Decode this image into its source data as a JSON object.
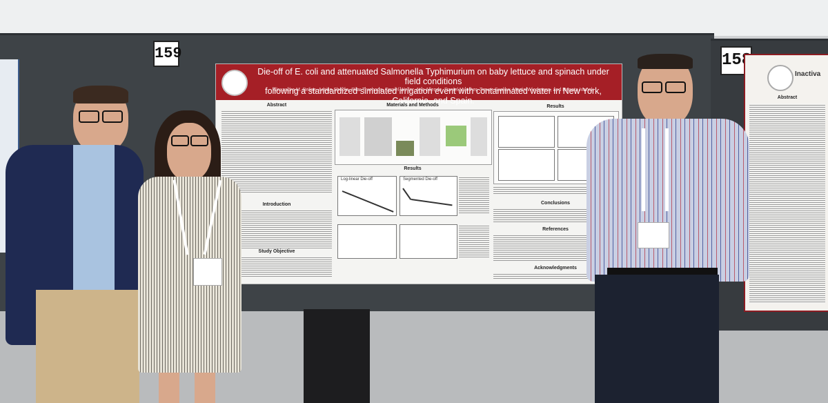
{
  "scene": {
    "board_left_number": "159",
    "board_right_number": "158"
  },
  "poster_main": {
    "title_line1": "Die-off of E. coli and attenuated Salmonella Typhimurium on baby lettuce and spinach under field conditions",
    "title_line2": "following a standardized simulated irrigation event with contaminated water in New York, California, and Spain.",
    "authors": "Alexandra M. Belias, Adrian Sbodio, Pilar Truchado, Daniel Weller, Ana Allende, Daniel Munther, Trevor Suslow, Martin Wiedmann, and Renata Ivanek",
    "sections": {
      "abstract": "Abstract",
      "materials_methods": "Materials and Methods",
      "results_top": "Results",
      "results_middle": "Results",
      "introduction": "Introduction",
      "study_objective": "Study Objective",
      "conclusions": "Conclusions",
      "references": "References",
      "acknowledgments": "Acknowledgments"
    },
    "plot_titles": {
      "log_linear": "Log-linear Die-off",
      "segmented": "Segmented Die-off"
    }
  },
  "poster_right": {
    "title": "Inactiva",
    "abstract_heading": "Abstract"
  },
  "people": [
    {
      "role": "man-left",
      "shirt": "#a9c3e0",
      "jacket": "#1f2a52"
    },
    {
      "role": "woman-center",
      "dress": "#e8e4d8"
    },
    {
      "role": "man-right",
      "shirt": "#c9cfe3"
    }
  ],
  "colors": {
    "poster_header": "#a51f26",
    "board": "#3e4347"
  }
}
